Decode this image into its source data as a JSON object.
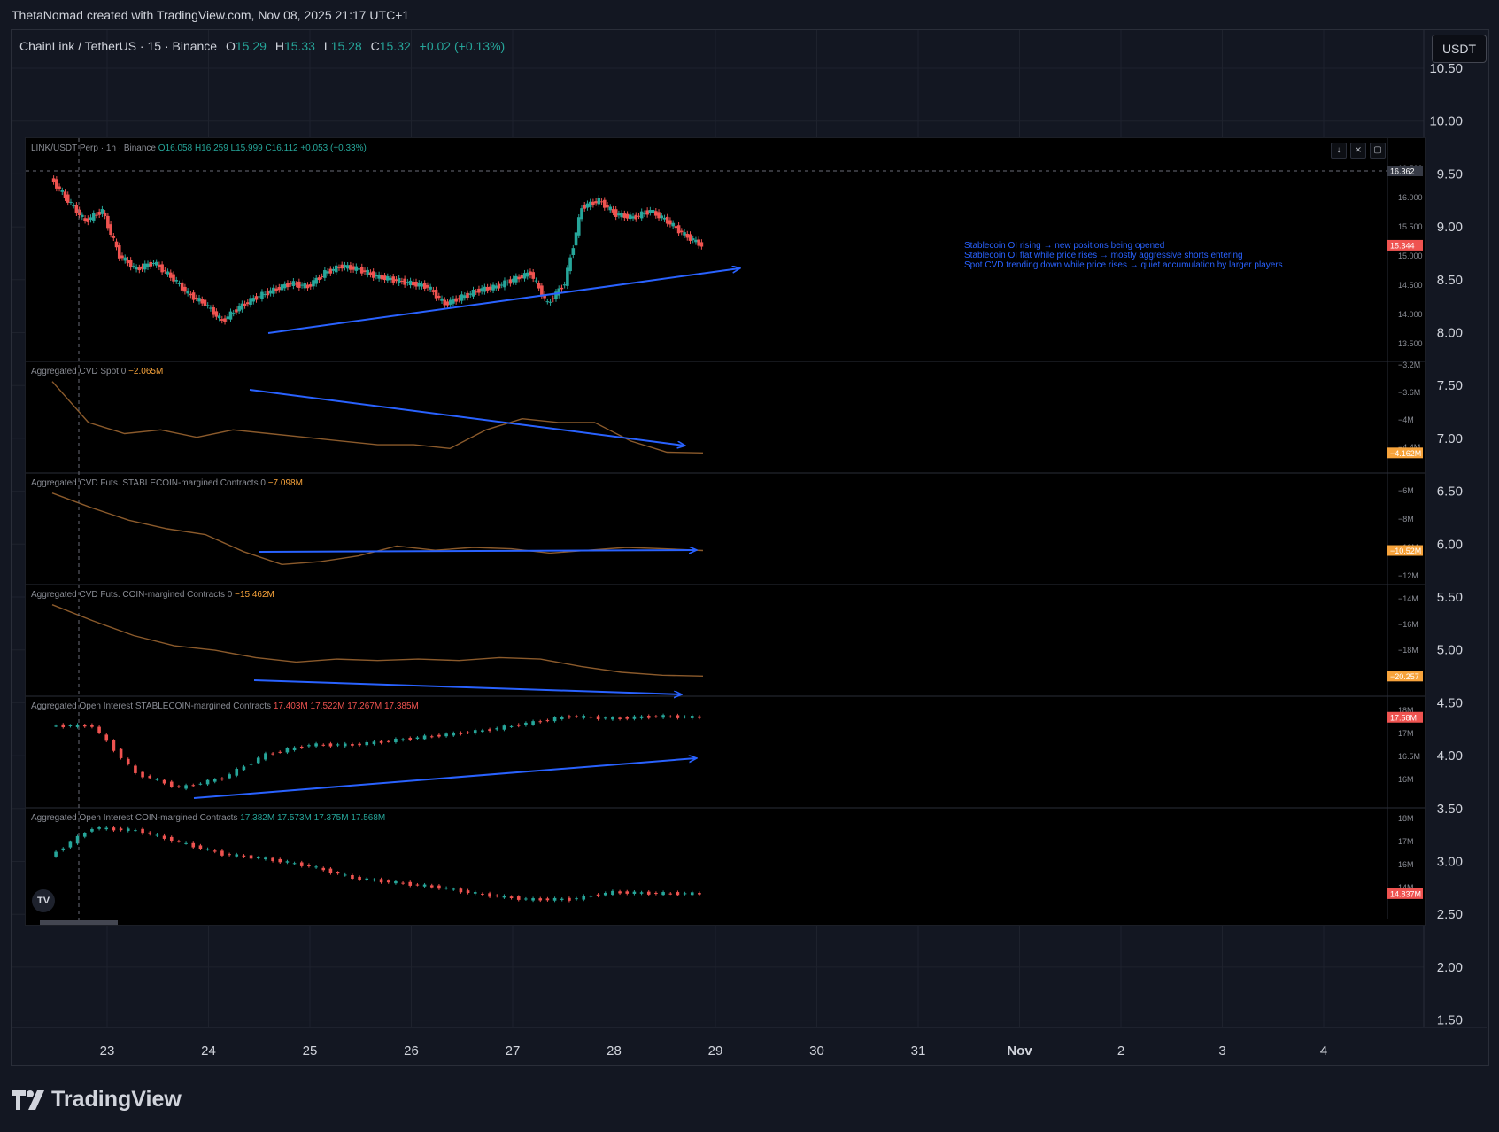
{
  "credit": "ThetaNomad created with TradingView.com, Nov 08, 2025 21:17 UTC+1",
  "header": {
    "symbol": "ChainLink / TetherUS · 15 · Binance",
    "o_label": "O",
    "o_value": "15.29",
    "h_label": "H",
    "h_value": "15.33",
    "l_label": "L",
    "l_value": "15.28",
    "c_label": "C",
    "c_value": "15.32",
    "change": "+0.02 (+0.13%)"
  },
  "currency_button": "USDT",
  "footer_brand": "TradingView",
  "colors": {
    "background": "#131722",
    "up": "#26a69a",
    "down": "#ef5350",
    "cvd": "#8b5a2b",
    "arrow": "#2962ff"
  },
  "chart_data": [
    {
      "type": "line",
      "title": "ChainLink / TetherUS · 15 · Binance",
      "y_axis_ticks": [
        "10.50",
        "10.00",
        "9.50",
        "9.00",
        "8.50",
        "8.00",
        "7.50",
        "7.00",
        "6.50",
        "6.00",
        "5.50",
        "5.00",
        "4.50",
        "4.00",
        "3.50",
        "3.00",
        "2.50",
        "2.00",
        "1.50"
      ],
      "x_axis_ticks": [
        "23",
        "24",
        "25",
        "26",
        "27",
        "28",
        "29",
        "30",
        "31",
        "Nov",
        "2",
        "3",
        "4"
      ],
      "grid": true
    },
    {
      "type": "line",
      "description_text": "LINK/USDT Perp · 1h · Binance",
      "ohlc": {
        "O": "16.058",
        "H": "16.259",
        "L": "15.999",
        "C": "16.112",
        "change": "+0.053 (+0.33%)"
      },
      "y_ticks": [
        "16.500",
        "16.000",
        "15.500",
        "15.000",
        "14.500",
        "14.000",
        "13.500"
      ],
      "last_price_label": "15.344",
      "crosshair_label": "16.362",
      "series": [
        {
          "name": "LINK/USDT Perp",
          "values": [
            16.32,
            16.0,
            15.7,
            15.85,
            15.2,
            15.0,
            15.1,
            14.9,
            14.65,
            14.5,
            14.25,
            14.45,
            14.6,
            14.7,
            14.8,
            14.75,
            14.95,
            15.05,
            15.0,
            14.9,
            14.85,
            14.8,
            14.75,
            14.5,
            14.6,
            14.7,
            14.75,
            14.85,
            14.95,
            14.5,
            14.8,
            15.9,
            16.0,
            15.8,
            15.75,
            15.85,
            15.7,
            15.5,
            15.35
          ]
        }
      ],
      "annotations": [
        "Stablecoin OI rising → new positions being opened",
        "Stablecoin OI flat while price rises → mostly aggressive shorts entering",
        "Spot CVD trending down while price rises → quiet accumulation by larger players"
      ]
    },
    {
      "type": "line",
      "title": "Aggregated CVD Spot 0",
      "last_value": "−2.065M",
      "y_ticks": [
        "−3.2M",
        "−3.6M",
        "−4M",
        "−4.4M"
      ],
      "last_label": "−4.162M",
      "series": [
        {
          "name": "Aggregated CVD Spot",
          "values": [
            -3.2,
            -3.75,
            -3.9,
            -3.85,
            -3.95,
            -3.85,
            -3.9,
            -3.95,
            -4.0,
            -4.05,
            -4.05,
            -4.1,
            -3.85,
            -3.7,
            -3.75,
            -3.75,
            -4.0,
            -4.15,
            -4.16
          ]
        }
      ]
    },
    {
      "type": "line",
      "title": "Aggregated CVD Futs. STABLECOIN-margined Contracts 0",
      "last_value": "−7.098M",
      "y_ticks": [
        "−6M",
        "−8M",
        "−10M",
        "−12M"
      ],
      "last_label": "−10.52M",
      "series": [
        {
          "name": "Aggregated CVD Futs. STABLECOIN",
          "values": [
            -6.5,
            -7.5,
            -8.4,
            -9.0,
            -9.4,
            -10.6,
            -11.5,
            -11.3,
            -10.9,
            -10.2,
            -10.5,
            -10.3,
            -10.4,
            -10.7,
            -10.5,
            -10.3,
            -10.4,
            -10.52
          ]
        }
      ]
    },
    {
      "type": "line",
      "title": "Aggregated CVD Futs. COIN-margined Contracts 0",
      "last_value": "−15.462M",
      "y_ticks": [
        "−14M",
        "−16M",
        "−18M"
      ],
      "last_label": "−20.257",
      "series": [
        {
          "name": "Aggregated CVD Futs. COIN",
          "values": [
            -15.4,
            -16.5,
            -17.5,
            -18.2,
            -18.5,
            -19.0,
            -19.3,
            -19.1,
            -19.2,
            -19.1,
            -19.2,
            -19.0,
            -19.1,
            -19.6,
            -20.0,
            -20.2,
            -20.26
          ]
        }
      ]
    },
    {
      "type": "line",
      "title": "Aggregated Open Interest STABLECOIN-margined Contracts",
      "ohlc": {
        "O": "17.403M",
        "H": "17.522M",
        "L": "17.267M",
        "C": "17.385M"
      },
      "y_ticks": [
        "18M",
        "17M",
        "16.5M",
        "16M"
      ],
      "last_label": "17.58M",
      "series": [
        {
          "name": "Aggregated OI STABLECOIN",
          "values": [
            17.4,
            17.4,
            16.4,
            16.1,
            16.3,
            16.8,
            17.0,
            17.0,
            17.1,
            17.2,
            17.3,
            17.45,
            17.6,
            17.55,
            17.6,
            17.58
          ]
        }
      ]
    },
    {
      "type": "line",
      "title": "Aggregated Open Interest COIN-margined Contracts",
      "ohlc": {
        "O": "17.382M",
        "H": "17.573M",
        "L": "17.375M",
        "C": "17.568M"
      },
      "y_ticks": [
        "18M",
        "17M",
        "16M",
        "14M"
      ],
      "last_label": "14.837M",
      "series": [
        {
          "name": "Aggregated OI COIN",
          "values": [
            16.4,
            17.6,
            17.5,
            17.0,
            16.5,
            16.3,
            16.0,
            15.5,
            15.3,
            15.1,
            14.8,
            14.6,
            14.6,
            14.9,
            14.85,
            14.84
          ]
        }
      ]
    }
  ]
}
